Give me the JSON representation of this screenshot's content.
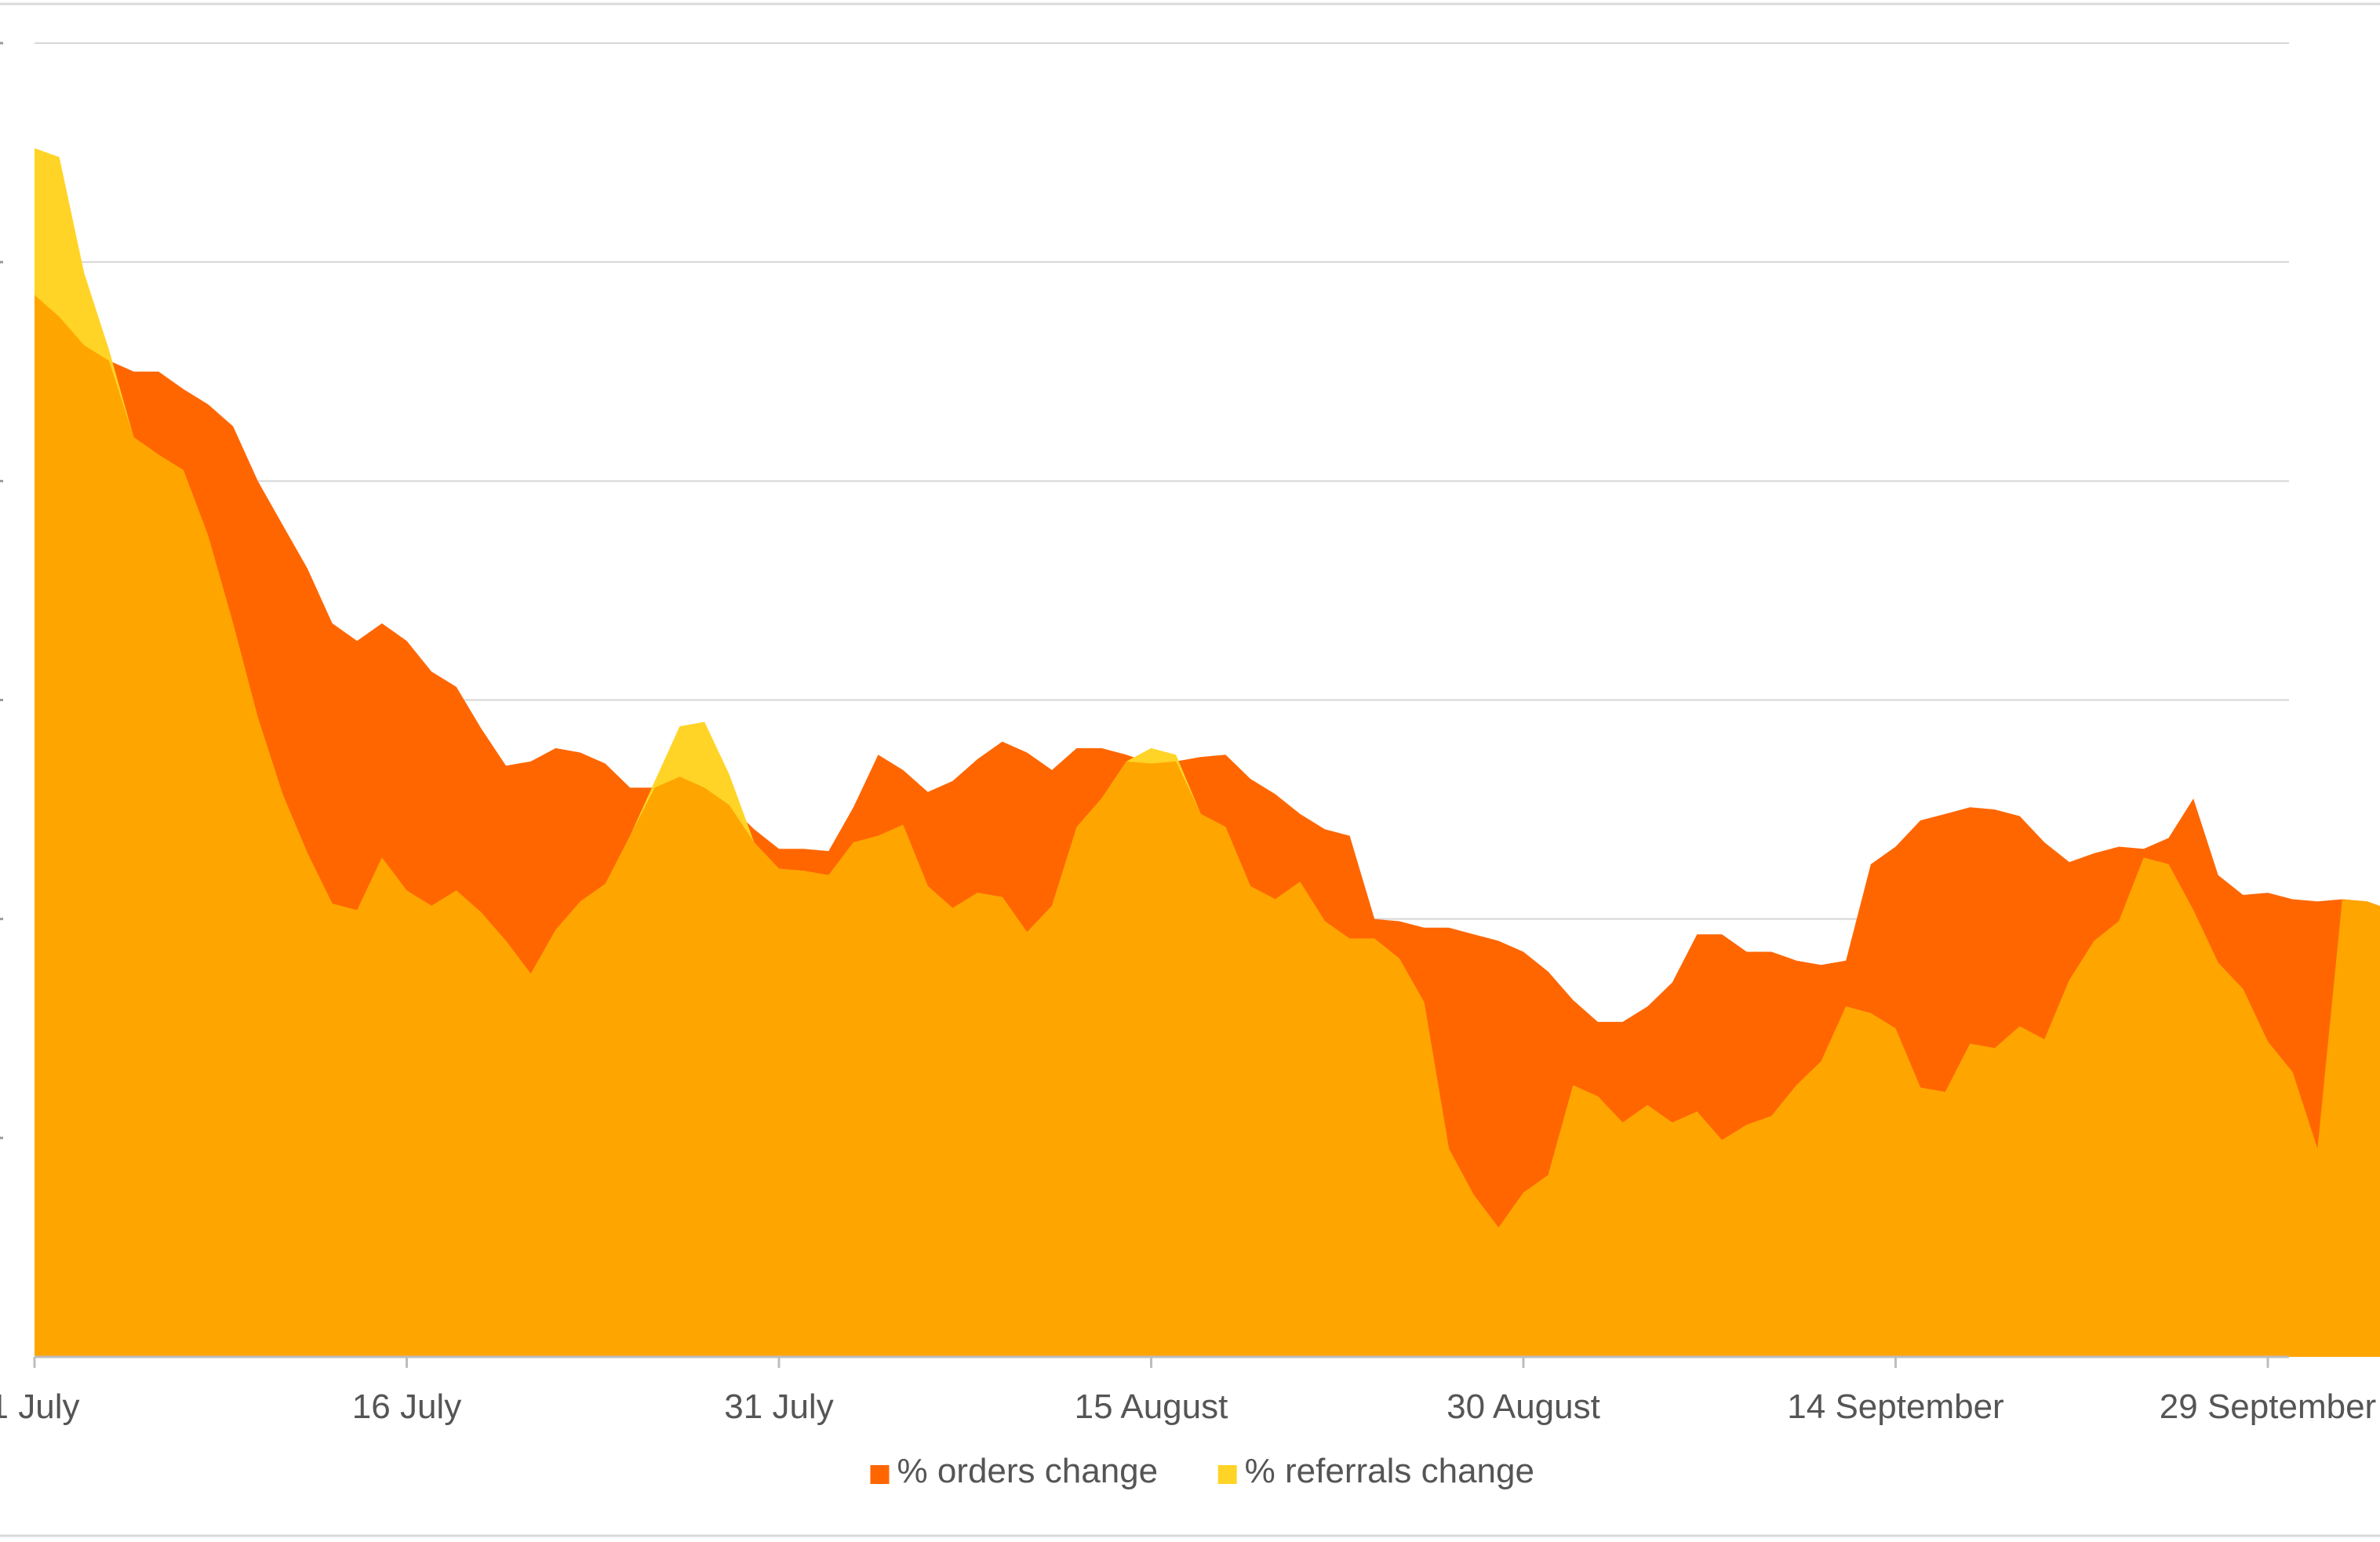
{
  "chart_data": {
    "type": "area",
    "title": "",
    "xlabel": "",
    "ylabel": "",
    "x_ticks": [
      "1 July",
      "16 July",
      "31 July",
      "15 August",
      "30 August",
      "14 September",
      "29 September"
    ],
    "ylim": [
      0,
      6
    ],
    "yaxis_tick_labels_visible": false,
    "grid": true,
    "legend_position": "bottom-center",
    "series": [
      {
        "name": "% orders change",
        "color": "#ff6600",
        "values": [
          4.85,
          4.75,
          4.62,
          4.55,
          4.5,
          4.5,
          4.42,
          4.35,
          4.25,
          4.0,
          3.8,
          3.6,
          3.35,
          3.27,
          3.35,
          3.27,
          3.13,
          3.06,
          2.87,
          2.7,
          2.72,
          2.78,
          2.76,
          2.71,
          2.6,
          2.6,
          2.65,
          2.6,
          2.52,
          2.41,
          2.32,
          2.32,
          2.31,
          2.51,
          2.75,
          2.68,
          2.58,
          2.63,
          2.73,
          2.81,
          2.76,
          2.68,
          2.78,
          2.78,
          2.75,
          2.71,
          2.72,
          2.74,
          2.75,
          2.64,
          2.57,
          2.48,
          2.41,
          2.38,
          2.0,
          1.99,
          1.96,
          1.96,
          1.93,
          1.9,
          1.85,
          1.76,
          1.63,
          1.53,
          1.53,
          1.6,
          1.71,
          1.93,
          1.93,
          1.85,
          1.85,
          1.81,
          1.79,
          1.81,
          2.25,
          2.33,
          2.45,
          2.48,
          2.51,
          2.5,
          2.47,
          2.35,
          2.26,
          2.3,
          2.33,
          2.32,
          2.37,
          2.55,
          2.2,
          2.11,
          2.12,
          2.09,
          2.08,
          2.09,
          2.08,
          2.04,
          1.96,
          1.87,
          1.83
        ]
      },
      {
        "name": "% referrals change",
        "color": "#ffd426",
        "values": [
          5.52,
          5.48,
          4.95,
          4.6,
          4.2,
          4.12,
          4.05,
          3.75,
          3.35,
          2.92,
          2.57,
          2.3,
          2.07,
          2.04,
          2.28,
          2.13,
          2.06,
          2.13,
          2.03,
          1.9,
          1.75,
          1.95,
          2.08,
          2.16,
          2.38,
          2.63,
          2.88,
          2.9,
          2.66,
          2.35,
          2.23,
          2.22,
          2.2,
          2.35,
          2.38,
          2.43,
          2.15,
          2.05,
          2.12,
          2.1,
          1.94,
          2.06,
          2.42,
          2.55,
          2.72,
          2.78,
          2.75,
          2.48,
          2.42,
          2.15,
          2.09,
          2.17,
          1.99,
          1.91,
          1.91,
          1.82,
          1.62,
          0.95,
          0.74,
          0.59,
          0.75,
          0.83,
          1.24,
          1.19,
          1.07,
          1.15,
          1.07,
          1.12,
          0.99,
          1.06,
          1.1,
          1.24,
          1.35,
          1.6,
          1.57,
          1.5,
          1.23,
          1.21,
          1.43,
          1.41,
          1.51,
          1.45,
          1.72,
          1.9,
          1.99,
          2.28,
          2.25,
          2.04,
          1.8,
          1.68,
          1.44,
          1.3,
          0.95
        ]
      }
    ]
  }
}
